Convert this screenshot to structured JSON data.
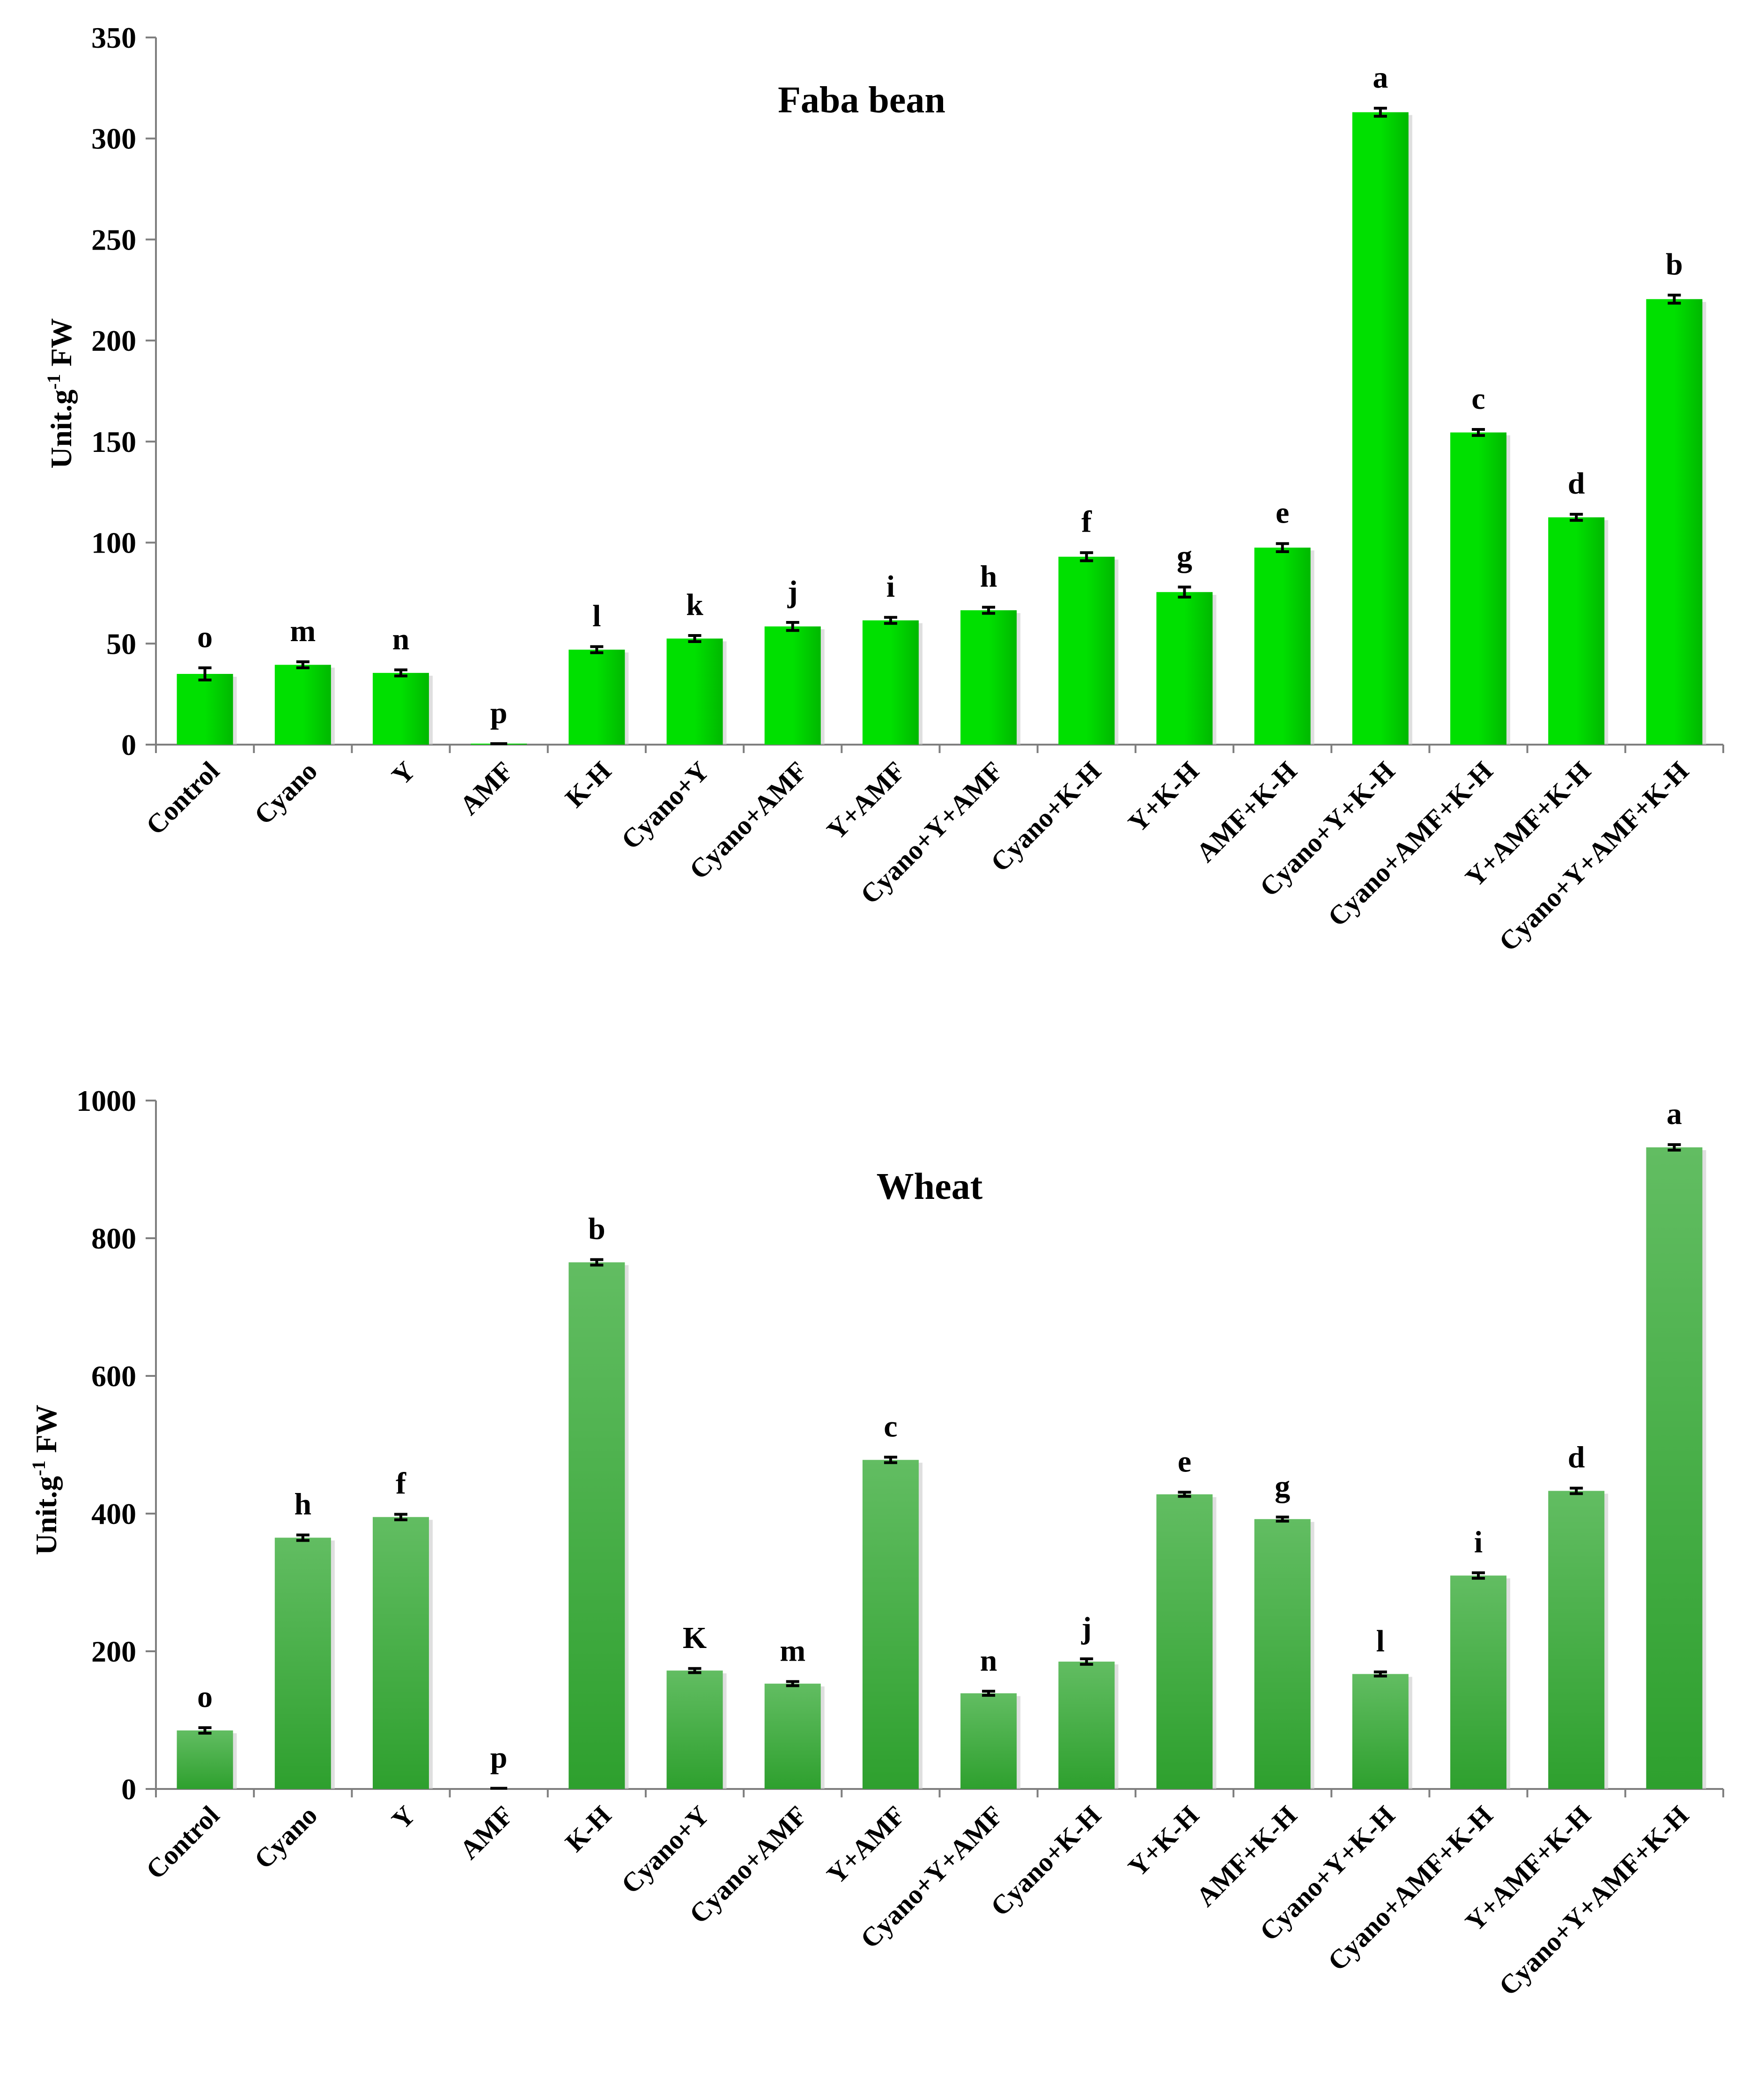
{
  "chart_data": [
    {
      "type": "bar",
      "title": "Faba bean",
      "ylabel": "Unit.g-1 FW",
      "ylabel_main": "Unit.g",
      "ylabel_sup": "-1",
      "ylabel_tail": " FW",
      "xlabel": "",
      "ylim": [
        0,
        350
      ],
      "yticks": [
        0,
        50,
        100,
        150,
        200,
        250,
        300,
        350
      ],
      "bar_color": "#00e000",
      "bar_color_dark": "#00b800",
      "categories": [
        "Control",
        "Cyano",
        "Y",
        "AMF",
        "K-H",
        "Cyano+Y",
        "Cyano+AMF",
        "Y+AMF",
        "Cyano+Y+AMF",
        "Cyano+K-H",
        "Y+K-H",
        "AMF+K-H",
        "Cyano+Y+K-H",
        "Cyano+AMF+K-H",
        "Y+AMF+K-H",
        "Cyano+Y+AMF+K-H"
      ],
      "values": [
        35,
        39.5,
        35.5,
        0.5,
        47,
        52.5,
        58.5,
        61.5,
        66.5,
        93,
        75.5,
        97.5,
        313,
        154.5,
        112.5,
        220.5
      ],
      "errors": [
        3,
        1.5,
        1.5,
        0,
        1.5,
        1.5,
        2,
        1.5,
        1.5,
        2,
        2.5,
        2,
        2,
        1.5,
        1.5,
        2
      ],
      "significance": [
        "o",
        "m",
        "n",
        "p",
        "l",
        "k",
        "j",
        "i",
        "h",
        "f",
        "g",
        "e",
        "a",
        "c",
        "d",
        "b"
      ]
    },
    {
      "type": "bar",
      "title": "Wheat",
      "ylabel": "Unit.g-1 FW",
      "ylabel_main": "Unit.g",
      "ylabel_sup": "-1",
      "ylabel_tail": " FW",
      "xlabel": "",
      "ylim": [
        0,
        1000
      ],
      "yticks": [
        0,
        200,
        400,
        600,
        800,
        1000
      ],
      "bar_color": "#62bd62",
      "bar_color_dark": "#2ea02e",
      "categories": [
        "Control",
        "Cyano",
        "Y",
        "AMF",
        "K-H",
        "Cyano+Y",
        "Cyano+AMF",
        "Y+AMF",
        "Cyano+Y+AMF",
        "Cyano+K-H",
        "Y+K-H",
        "AMF+K-H",
        "Cyano+Y+K-H",
        "Cyano+AMF+K-H",
        "Y+AMF+K-H",
        "Cyano+Y+AMF+K-H"
      ],
      "values": [
        85,
        365,
        395,
        1,
        765,
        172,
        153,
        478,
        139,
        185,
        428,
        392,
        167,
        310,
        433,
        932
      ],
      "errors": [
        4,
        4,
        4,
        0,
        4,
        3,
        3,
        4,
        3,
        4,
        3,
        3,
        3,
        4,
        4,
        4
      ],
      "significance": [
        "o",
        "h",
        "f",
        "p",
        "b",
        "K",
        "m",
        "c",
        "n",
        "j",
        "e",
        "g",
        "l",
        "i",
        "d",
        "a"
      ]
    }
  ]
}
